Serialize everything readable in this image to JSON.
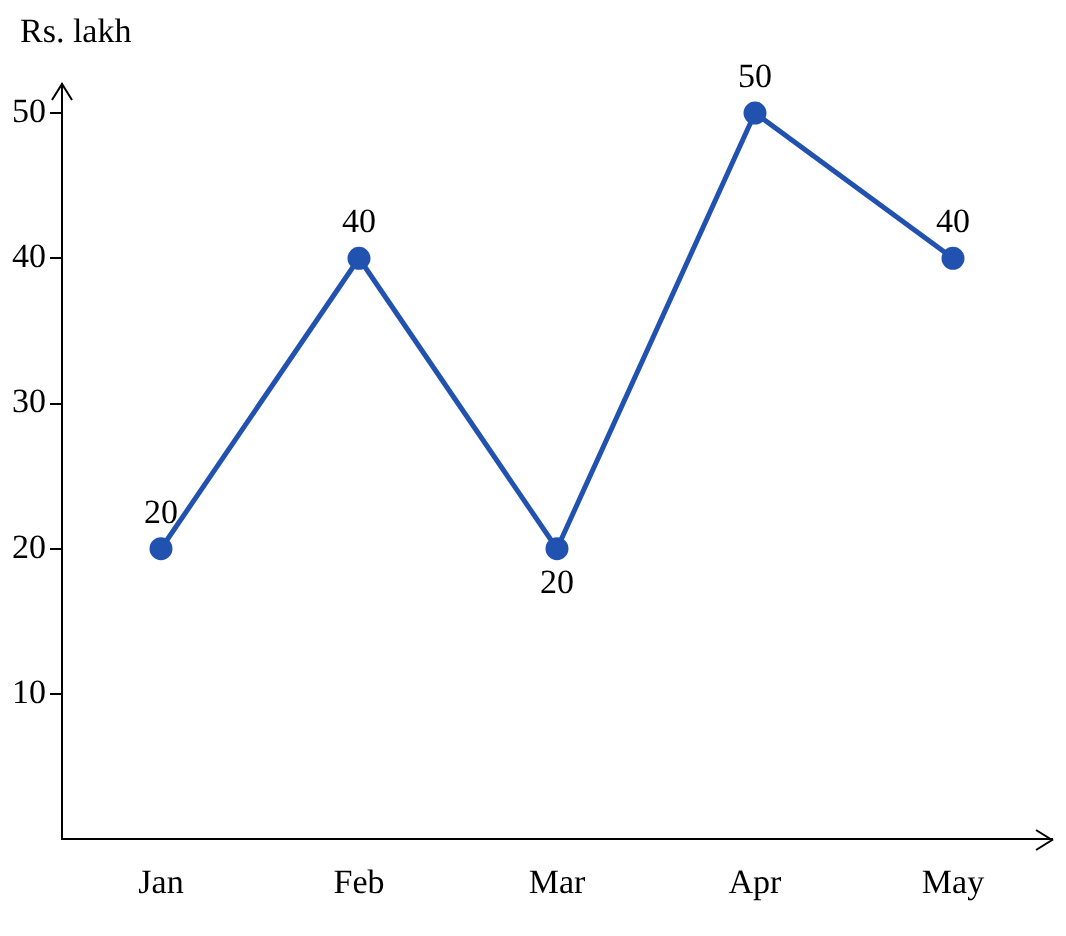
{
  "chart_data": {
    "type": "line",
    "ylabel": "Rs. lakh",
    "categories": [
      "Jan",
      "Feb",
      "Mar",
      "Apr",
      "May"
    ],
    "series": [
      {
        "color": "#2152b0",
        "values": [
          20,
          40,
          20,
          50,
          40
        ]
      }
    ],
    "ylim": [
      0,
      52
    ],
    "yticks": [
      10,
      20,
      30,
      40,
      50
    ],
    "grid": false,
    "legend": false,
    "marker": "circle",
    "line_style": "solid",
    "data_labels": true
  }
}
